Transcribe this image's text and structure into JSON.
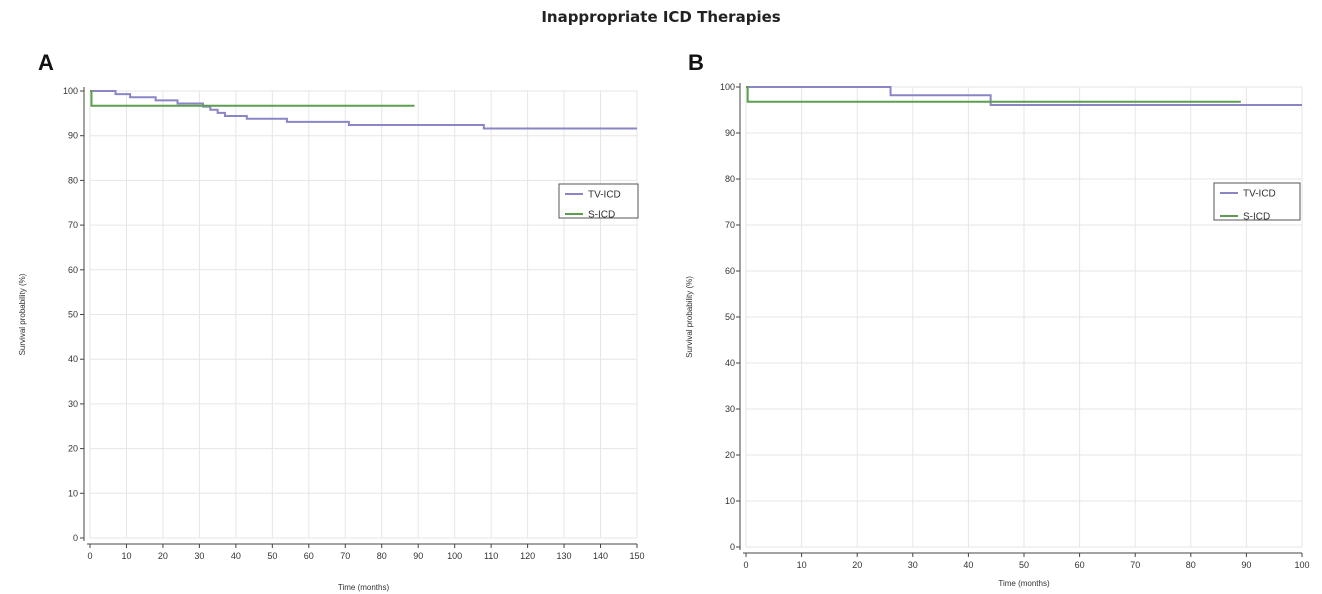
{
  "figure": {
    "title": "Inappropriate ICD Therapies"
  },
  "colors": {
    "tv_icd": "#8a85c7",
    "s_icd": "#5d9e4e",
    "grid": "#e6e6e6",
    "axis": "#444444"
  },
  "chart_data": [
    {
      "panel": "A",
      "type": "line",
      "step": true,
      "xlabel": "Time (months)",
      "ylabel": "Survival probability (%)",
      "xlim": [
        0,
        150
      ],
      "ylim": [
        0,
        100
      ],
      "xticks": [
        0,
        10,
        20,
        30,
        40,
        50,
        60,
        70,
        80,
        90,
        100,
        110,
        120,
        130,
        140,
        150
      ],
      "yticks": [
        0,
        10,
        20,
        30,
        40,
        50,
        60,
        70,
        80,
        90,
        100
      ],
      "grid": true,
      "legend": {
        "position": "right",
        "entries": [
          "TV-ICD",
          "S-ICD"
        ]
      },
      "series": [
        {
          "name": "TV-ICD",
          "color_key": "tv_icd",
          "points": [
            [
              0,
              100
            ],
            [
              7,
              100
            ],
            [
              7,
              99.3
            ],
            [
              11,
              99.3
            ],
            [
              11,
              98.6
            ],
            [
              18,
              98.6
            ],
            [
              18,
              97.9
            ],
            [
              24,
              97.9
            ],
            [
              24,
              97.2
            ],
            [
              31,
              97.2
            ],
            [
              31,
              96.5
            ],
            [
              33,
              96.5
            ],
            [
              33,
              95.8
            ],
            [
              35,
              95.8
            ],
            [
              35,
              95.1
            ],
            [
              37,
              95.1
            ],
            [
              37,
              94.4
            ],
            [
              43,
              94.4
            ],
            [
              43,
              93.8
            ],
            [
              54,
              93.8
            ],
            [
              54,
              93.1
            ],
            [
              71,
              93.1
            ],
            [
              71,
              92.4
            ],
            [
              108,
              92.4
            ],
            [
              108,
              91.6
            ],
            [
              150,
              91.6
            ]
          ]
        },
        {
          "name": "S-ICD",
          "color_key": "s_icd",
          "points": [
            [
              0,
              100
            ],
            [
              0.4,
              100
            ],
            [
              0.4,
              96.7
            ],
            [
              89,
              96.7
            ]
          ]
        }
      ]
    },
    {
      "panel": "B",
      "type": "line",
      "step": true,
      "xlabel": "Time (months)",
      "ylabel": "Survival probability (%)",
      "xlim": [
        0,
        100
      ],
      "ylim": [
        0,
        100
      ],
      "xticks": [
        0,
        10,
        20,
        30,
        40,
        50,
        60,
        70,
        80,
        90,
        100
      ],
      "yticks": [
        0,
        10,
        20,
        30,
        40,
        50,
        60,
        70,
        80,
        90,
        100
      ],
      "grid": true,
      "legend": {
        "position": "right",
        "entries": [
          "TV-ICD",
          "S-ICD"
        ]
      },
      "series": [
        {
          "name": "TV-ICD",
          "color_key": "tv_icd",
          "points": [
            [
              0,
              100
            ],
            [
              26,
              100
            ],
            [
              26,
              98.2
            ],
            [
              44,
              98.2
            ],
            [
              44,
              96.1
            ],
            [
              100,
              96.1
            ]
          ]
        },
        {
          "name": "S-ICD",
          "color_key": "s_icd",
          "points": [
            [
              0,
              100
            ],
            [
              0.3,
              100
            ],
            [
              0.3,
              96.8
            ],
            [
              89,
              96.8
            ]
          ]
        }
      ]
    }
  ]
}
